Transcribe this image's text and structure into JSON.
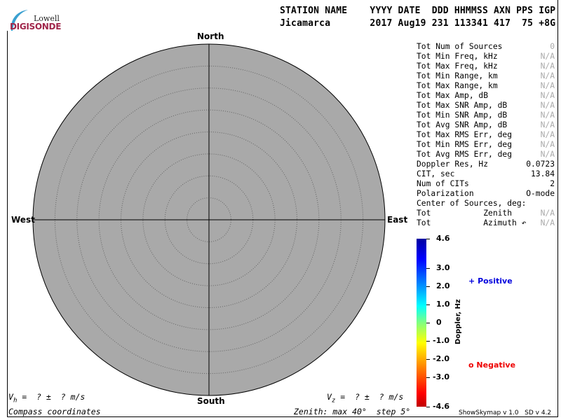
{
  "logo": {
    "line1": "Lowell",
    "line2": "DIGISONDE"
  },
  "header": {
    "labels": "STATION NAME    YYYY DATE  DDD HHMMSS AXN PPS IGP",
    "values": "Jicamarca       2017 Aug19 231 113341 417  75 +8G"
  },
  "compass": {
    "north": "North",
    "south": "South",
    "east": "East",
    "west": "West"
  },
  "skymap": {
    "zenith_max_deg": 40,
    "zenith_step_deg": 5,
    "background": "#a9a9a9"
  },
  "stats": [
    {
      "label": "Tot Num of Sources",
      "value": "0",
      "na": true
    },
    {
      "label": "Tot Min Freq, kHz",
      "value": "N/A",
      "na": true
    },
    {
      "label": "Tot Max Freq, kHz",
      "value": "N/A",
      "na": true
    },
    {
      "label": "Tot Min Range, km",
      "value": "N/A",
      "na": true
    },
    {
      "label": "Tot Max Range, km",
      "value": "N/A",
      "na": true
    },
    {
      "label": "Tot Max Amp, dB",
      "value": "N/A",
      "na": true
    },
    {
      "label": "Tot Max SNR Amp, dB",
      "value": "N/A",
      "na": true
    },
    {
      "label": "Tot Min SNR Amp, dB",
      "value": "N/A",
      "na": true
    },
    {
      "label": "Tot Avg SNR Amp, dB",
      "value": "N/A",
      "na": true
    },
    {
      "label": "Tot Max RMS Err, deg",
      "value": "N/A",
      "na": true
    },
    {
      "label": "Tot Min RMS Err, deg",
      "value": "N/A",
      "na": true
    },
    {
      "label": "Tot Avg RMS Err, deg",
      "value": "N/A",
      "na": true
    },
    {
      "label": "Doppler Res, Hz",
      "value": "0.0723",
      "na": false
    },
    {
      "label": "CIT, sec",
      "value": "13.84",
      "na": false
    },
    {
      "label": "Num of CITs",
      "value": "2",
      "na": false
    },
    {
      "label": "Polarization",
      "value": "O-mode",
      "na": false
    },
    {
      "label": "Center of Sources, deg:",
      "value": "",
      "na": false
    },
    {
      "label": "Tot           Zenith",
      "value": "N/A",
      "na": true
    },
    {
      "label": "Tot           Azimuth ↶",
      "value": "N/A",
      "na": true
    }
  ],
  "colorbar": {
    "label": "Doppler, Hz",
    "ticks": [
      "4.6",
      "3.0",
      "2.0",
      "1.0",
      "0",
      "-1.0",
      "-2.0",
      "-3.0",
      "-4.6"
    ],
    "tick_values": [
      4.6,
      3.0,
      2.0,
      1.0,
      0,
      -1.0,
      -2.0,
      -3.0,
      -4.6
    ]
  },
  "legend": {
    "positive": "Positive",
    "negative": "Negative",
    "positive_color": "#0000dd",
    "negative_color": "#ee0000"
  },
  "footer": {
    "vh": "V",
    "vh_sub": "h",
    "vh_rest": " =  ? ±  ? m/s",
    "vz": "V",
    "vz_sub": "z",
    "vz_rest": " =  ? ±  ? m/s",
    "coords": "Compass coordinates",
    "zenith": "Zenith: max 40°  step 5°",
    "version": "ShowSkymap v 1.0   SD v 4.2"
  }
}
